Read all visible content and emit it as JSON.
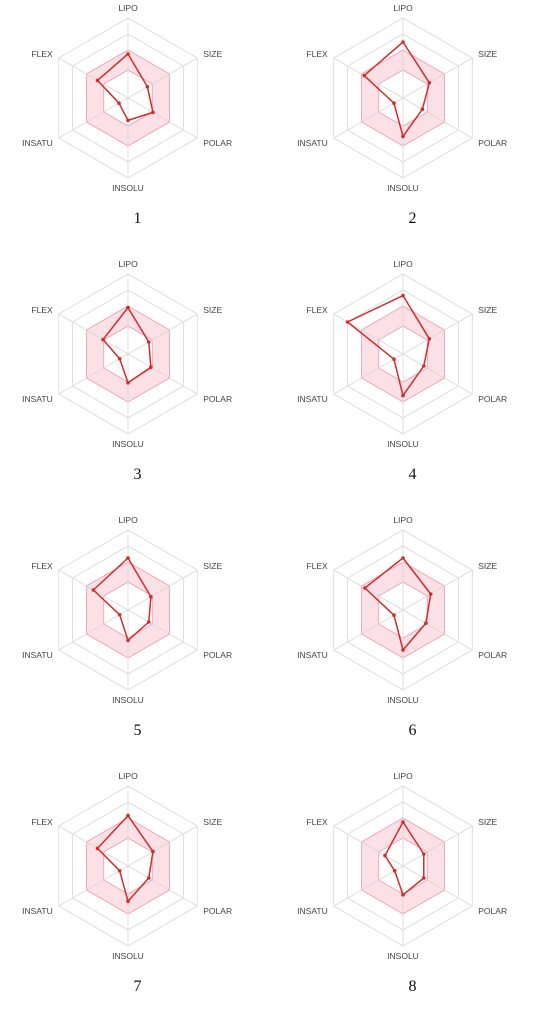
{
  "chart_data": [
    {
      "type": "radar",
      "panel_label": "1",
      "axes": [
        "LIPO",
        "SIZE",
        "POLAR",
        "INSOLU",
        "INSATU",
        "FLEX"
      ],
      "range": [
        0,
        1
      ],
      "values": [
        0.55,
        0.28,
        0.36,
        0.28,
        0.13,
        0.44
      ]
    },
    {
      "type": "radar",
      "panel_label": "2",
      "axes": [
        "LIPO",
        "SIZE",
        "POLAR",
        "INSOLU",
        "INSATU",
        "FLEX"
      ],
      "range": [
        0,
        1
      ],
      "values": [
        0.7,
        0.38,
        0.28,
        0.48,
        0.13,
        0.56
      ]
    },
    {
      "type": "radar",
      "panel_label": "3",
      "axes": [
        "LIPO",
        "SIZE",
        "POLAR",
        "INSOLU",
        "INSATU",
        "FLEX"
      ],
      "range": [
        0,
        1
      ],
      "values": [
        0.58,
        0.3,
        0.33,
        0.36,
        0.12,
        0.36
      ]
    },
    {
      "type": "radar",
      "panel_label": "4",
      "axes": [
        "LIPO",
        "SIZE",
        "POLAR",
        "INSOLU",
        "INSATU",
        "FLEX"
      ],
      "range": [
        0,
        1
      ],
      "values": [
        0.73,
        0.38,
        0.3,
        0.52,
        0.13,
        0.8
      ]
    },
    {
      "type": "radar",
      "panel_label": "5",
      "axes": [
        "LIPO",
        "SIZE",
        "POLAR",
        "INSOLU",
        "INSATU",
        "FLEX"
      ],
      "range": [
        0,
        1
      ],
      "values": [
        0.65,
        0.33,
        0.3,
        0.38,
        0.12,
        0.5
      ]
    },
    {
      "type": "radar",
      "panel_label": "6",
      "axes": [
        "LIPO",
        "SIZE",
        "POLAR",
        "INSOLU",
        "INSATU",
        "FLEX"
      ],
      "range": [
        0,
        1
      ],
      "values": [
        0.65,
        0.4,
        0.33,
        0.5,
        0.13,
        0.55
      ]
    },
    {
      "type": "radar",
      "panel_label": "7",
      "axes": [
        "LIPO",
        "SIZE",
        "POLAR",
        "INSOLU",
        "INSATU",
        "FLEX"
      ],
      "range": [
        0,
        1
      ],
      "values": [
        0.63,
        0.36,
        0.3,
        0.44,
        0.12,
        0.44
      ]
    },
    {
      "type": "radar",
      "panel_label": "8",
      "axes": [
        "LIPO",
        "SIZE",
        "POLAR",
        "INSOLU",
        "INSATU",
        "FLEX"
      ],
      "range": [
        0,
        1
      ],
      "values": [
        0.55,
        0.3,
        0.3,
        0.36,
        0.12,
        0.26
      ]
    }
  ],
  "colors": {
    "line": "#d42b2b",
    "band_fill": "#f9d5dd",
    "band_stroke": "#ef9bb0",
    "grid": "#d8d8d8"
  }
}
